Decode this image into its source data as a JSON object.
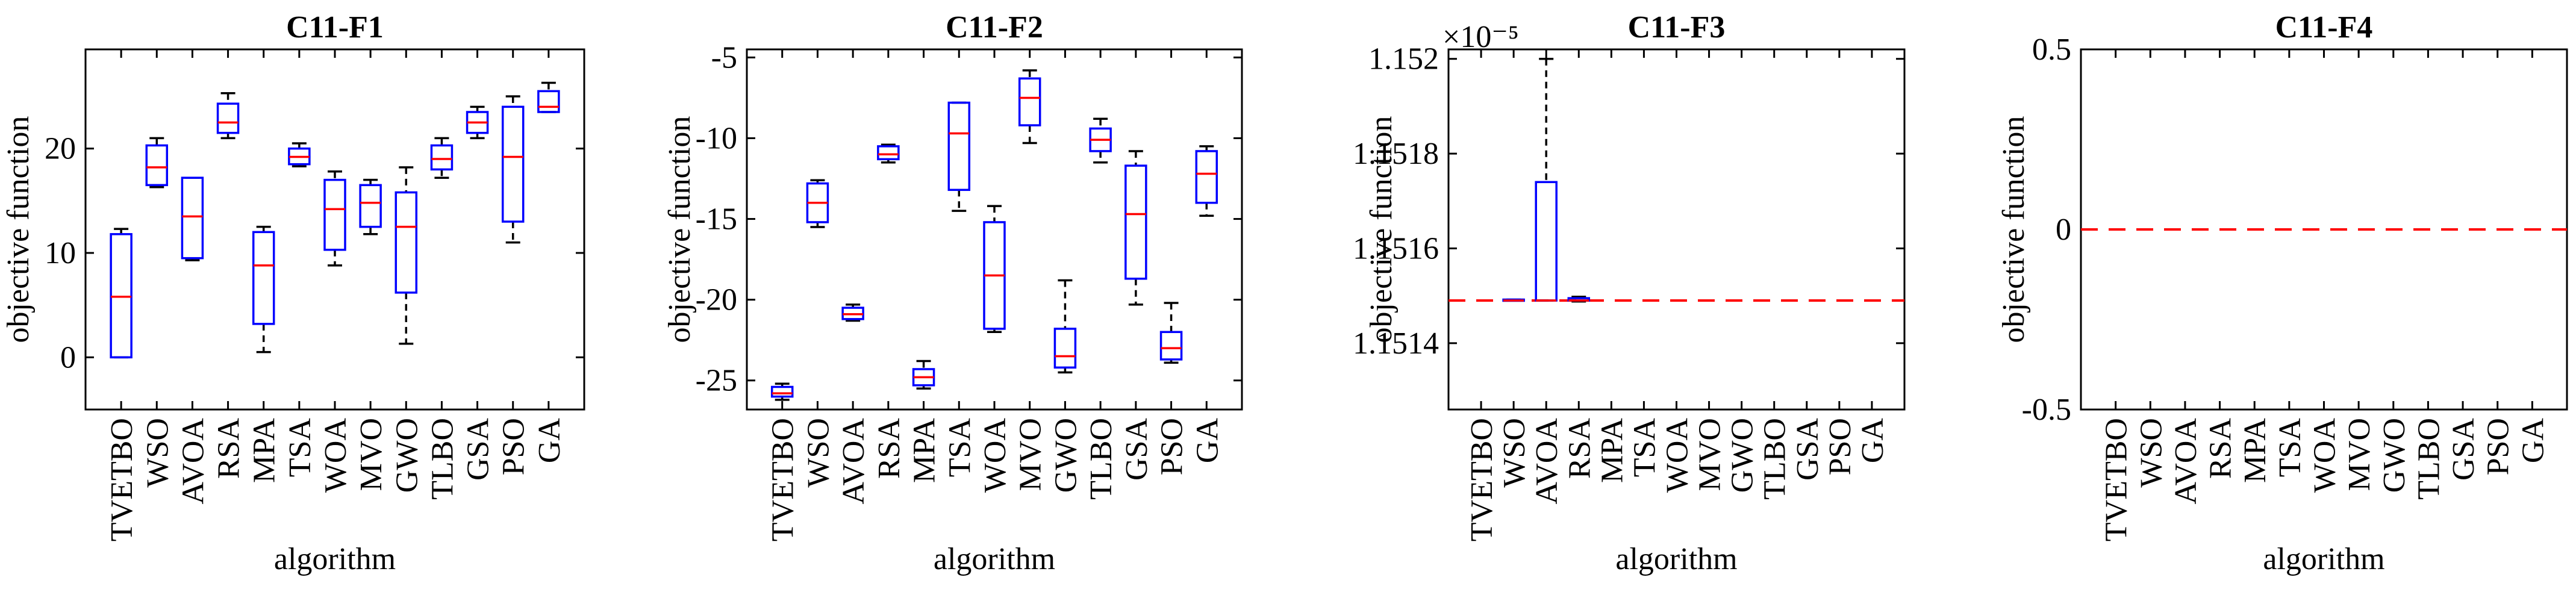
{
  "chart_data": [
    {
      "type": "box",
      "title": "C11-F1",
      "xlabel": "algorithm",
      "ylabel": "objective function",
      "categories": [
        "TVETBO",
        "WSO",
        "AVOA",
        "RSA",
        "MPA",
        "TSA",
        "WOA",
        "MVO",
        "GWO",
        "TLBO",
        "GSA",
        "PSO",
        "GA"
      ],
      "ylim": [
        -5,
        29.5
      ],
      "yticks": [
        0,
        10,
        20
      ],
      "ytick_labels": [
        "0",
        "10",
        "20"
      ],
      "exponent_label": "",
      "boxes": [
        {
          "min": 0,
          "q1": 0,
          "median": 5.8,
          "q3": 11.8,
          "max": 12.3
        },
        {
          "min": 16.3,
          "q1": 16.5,
          "median": 18.2,
          "q3": 20.3,
          "max": 21
        },
        {
          "min": 9.3,
          "q1": 9.5,
          "median": 13.5,
          "q3": 17.2,
          "max": 17.2
        },
        {
          "min": 21,
          "q1": 21.5,
          "median": 22.5,
          "q3": 24.3,
          "max": 25.3
        },
        {
          "min": 0.5,
          "q1": 3.2,
          "median": 8.8,
          "q3": 12,
          "max": 12.5
        },
        {
          "min": 18.3,
          "q1": 18.5,
          "median": 19.2,
          "q3": 20,
          "max": 20.5
        },
        {
          "min": 8.8,
          "q1": 10.3,
          "median": 14.2,
          "q3": 17,
          "max": 17.8
        },
        {
          "min": 11.8,
          "q1": 12.5,
          "median": 14.8,
          "q3": 16.5,
          "max": 17
        },
        {
          "min": 1.3,
          "q1": 6.2,
          "median": 12.5,
          "q3": 15.8,
          "max": 18.2
        },
        {
          "min": 17.2,
          "q1": 18,
          "median": 19,
          "q3": 20.3,
          "max": 21
        },
        {
          "min": 21,
          "q1": 21.5,
          "median": 22.5,
          "q3": 23.5,
          "max": 24
        },
        {
          "min": 11,
          "q1": 13,
          "median": 19.2,
          "q3": 24,
          "max": 25
        },
        {
          "min": 23.5,
          "q1": 23.5,
          "median": 24,
          "q3": 25.5,
          "max": 26.3
        }
      ],
      "reference_line": null
    },
    {
      "type": "box",
      "title": "C11-F2",
      "xlabel": "algorithm",
      "ylabel": "objective function",
      "categories": [
        "TVETBO",
        "WSO",
        "AVOA",
        "RSA",
        "MPA",
        "TSA",
        "WOA",
        "MVO",
        "GWO",
        "TLBO",
        "GSA",
        "PSO",
        "GA"
      ],
      "ylim": [
        -26.8,
        -4.5
      ],
      "yticks": [
        -25,
        -20,
        -15,
        -10,
        -5
      ],
      "ytick_labels": [
        "-25",
        "-20",
        "-15",
        "-10",
        "-5"
      ],
      "exponent_label": "",
      "boxes": [
        {
          "min": -26.2,
          "q1": -26,
          "median": -25.8,
          "q3": -25.4,
          "max": -25.2
        },
        {
          "min": -15.5,
          "q1": -15.2,
          "median": -14,
          "q3": -12.8,
          "max": -12.6
        },
        {
          "min": -21.3,
          "q1": -21.2,
          "median": -20.9,
          "q3": -20.5,
          "max": -20.3
        },
        {
          "min": -11.5,
          "q1": -11.3,
          "median": -11,
          "q3": -10.5,
          "max": -10.4
        },
        {
          "min": -25.5,
          "q1": -25.3,
          "median": -24.8,
          "q3": -24.3,
          "max": -23.8
        },
        {
          "min": -14.5,
          "q1": -13.2,
          "median": -9.7,
          "q3": -7.8,
          "max": -7.8
        },
        {
          "min": -22,
          "q1": -21.8,
          "median": -18.5,
          "q3": -15.2,
          "max": -14.2
        },
        {
          "min": -10.3,
          "q1": -9.2,
          "median": -7.5,
          "q3": -6.3,
          "max": -5.8
        },
        {
          "min": -24.5,
          "q1": -24.2,
          "median": -23.5,
          "q3": -21.8,
          "max": -18.8
        },
        {
          "min": -11.5,
          "q1": -10.8,
          "median": -10.1,
          "q3": -9.4,
          "max": -8.8
        },
        {
          "min": -20.3,
          "q1": -18.7,
          "median": -14.7,
          "q3": -11.7,
          "max": -10.8
        },
        {
          "min": -23.9,
          "q1": -23.7,
          "median": -23,
          "q3": -22,
          "max": -20.2
        },
        {
          "min": -14.8,
          "q1": -14,
          "median": -12.2,
          "q3": -10.8,
          "max": -10.5
        }
      ],
      "reference_line": null
    },
    {
      "type": "box",
      "title": "C11-F3",
      "xlabel": "algorithm",
      "ylabel": "objective function",
      "categories": [
        "TVETBO",
        "WSO",
        "AVOA",
        "RSA",
        "MPA",
        "TSA",
        "WOA",
        "MVO",
        "GWO",
        "TLBO",
        "GSA",
        "PSO",
        "GA"
      ],
      "ylim": [
        1.15126,
        1.15202
      ],
      "yticks": [
        1.1514,
        1.1516,
        1.1518,
        1.152
      ],
      "ytick_labels": [
        "1.1514",
        "1.1516",
        "1.1518",
        "1.152"
      ],
      "exponent_label": "×10⁻⁵",
      "boxes": [
        null,
        {
          "min": 1.15149,
          "q1": 1.15149,
          "median": 1.15149,
          "q3": 1.151492,
          "max": 1.151492
        },
        {
          "min": 1.15149,
          "q1": 1.15149,
          "median": 1.15149,
          "q3": 1.15174,
          "max": 1.152
        },
        {
          "min": 1.151488,
          "q1": 1.15149,
          "median": 1.15149,
          "q3": 1.151495,
          "max": 1.151498
        },
        null,
        null,
        null,
        null,
        null,
        null,
        null,
        null,
        null
      ],
      "reference_line": 1.15149
    },
    {
      "type": "box",
      "title": "C11-F4",
      "xlabel": "algorithm",
      "ylabel": "objective function",
      "categories": [
        "TVETBO",
        "WSO",
        "AVOA",
        "RSA",
        "MPA",
        "TSA",
        "WOA",
        "MVO",
        "GWO",
        "TLBO",
        "GSA",
        "PSO",
        "GA"
      ],
      "ylim": [
        -0.5,
        0.5
      ],
      "yticks": [
        -0.5,
        0,
        0.5
      ],
      "ytick_labels": [
        "-0.5",
        "0",
        "0.5"
      ],
      "exponent_label": "",
      "boxes": [
        null,
        null,
        null,
        null,
        null,
        null,
        null,
        null,
        null,
        null,
        null,
        null,
        null
      ],
      "reference_line": 0
    }
  ]
}
